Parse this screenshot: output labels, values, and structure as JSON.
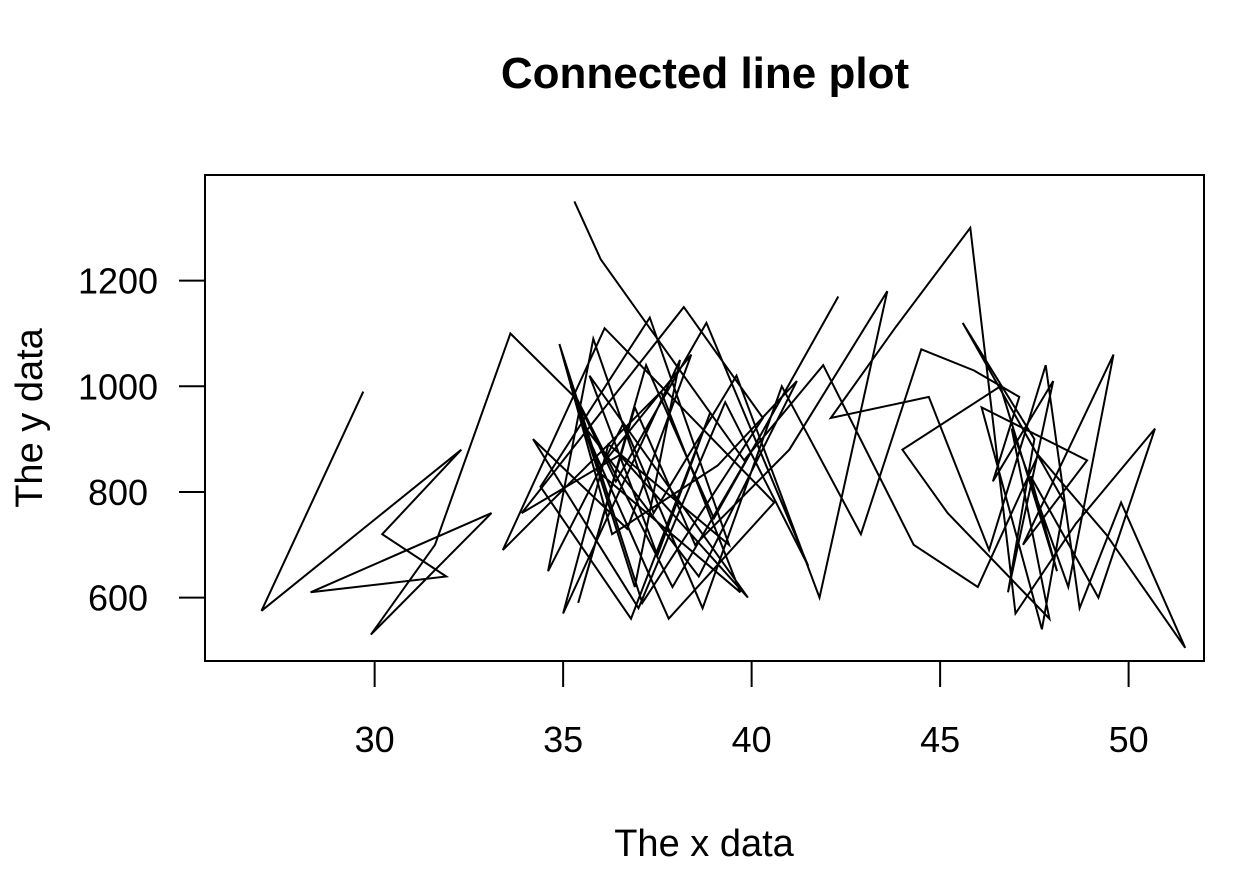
{
  "chart_data": {
    "type": "line",
    "title": "Connected line plot",
    "xlabel": "The x data",
    "ylabel": "The y data",
    "xlim": [
      25.5,
      52
    ],
    "ylim": [
      480,
      1400
    ],
    "x_ticks": [
      30,
      35,
      40,
      45,
      50
    ],
    "y_ticks": [
      600,
      800,
      1000,
      1200
    ],
    "x_tick_labels": [
      "30",
      "35",
      "40",
      "45",
      "50"
    ],
    "y_tick_labels": [
      "600",
      "800",
      "1000",
      "1200"
    ],
    "grid": false,
    "legend": "none",
    "series": [
      {
        "color": "#000000",
        "x": [
          29.7,
          27.0,
          32.3,
          30.2,
          31.9,
          28.3,
          33.1,
          29.9,
          31.6,
          33.6,
          35.3,
          36.9,
          38.1,
          35.0,
          36.2,
          39.4,
          37.3,
          34.4,
          36.8,
          38.9,
          37.5,
          35.7,
          39.9,
          36.5,
          33.9,
          38.2,
          40.3,
          37.1,
          34.9,
          36.3,
          39.1,
          41.2,
          38.6,
          35.5,
          37.8,
          40.6,
          36.1,
          33.4,
          37.6,
          39.7,
          35.9,
          38.4,
          36.7,
          34.2,
          37.0,
          39.3,
          41.5,
          38.8,
          36.4,
          35.2,
          37.9,
          40.1,
          42.3,
          39.0,
          37.2,
          35.4,
          36.9,
          38.5,
          41.0,
          43.6,
          41.8,
          39.6,
          37.4,
          35.8,
          34.6,
          36.6,
          38.7,
          40.8,
          42.9,
          44.5,
          45.9,
          47.1,
          46.4,
          48.0,
          46.8,
          47.5,
          45.6,
          48.3,
          47.7,
          46.1,
          48.9,
          47.2,
          49.6,
          48.4,
          46.9,
          47.9,
          45.2,
          44.0,
          46.6,
          48.1,
          47.4,
          49.2,
          50.7,
          48.6,
          47.0,
          45.8,
          43.8,
          42.1,
          44.7,
          46.3,
          47.8,
          48.7,
          49.8,
          51.5,
          49.4,
          47.6,
          46.0,
          44.3,
          41.9,
          39.8,
          36.0,
          35.3
        ],
        "y": [
          990,
          575,
          880,
          720,
          640,
          610,
          760,
          530,
          700,
          1100,
          980,
          620,
          1050,
          570,
          890,
          700,
          1130,
          810,
          560,
          950,
          680,
          1020,
          600,
          870,
          760,
          1150,
          940,
          590,
          1080,
          720,
          850,
          1010,
          640,
          930,
          560,
          780,
          1110,
          690,
          990,
          610,
          840,
          1060,
          730,
          900,
          580,
          970,
          660,
          1120,
          820,
          1000,
          620,
          890,
          1170,
          750,
          1040,
          590,
          960,
          700,
          880,
          1180,
          600,
          1020,
          760,
          1090,
          650,
          930,
          580,
          1000,
          720,
          1070,
          1030,
          980,
          820,
          1010,
          610,
          900,
          1120,
          780,
          540,
          960,
          860,
          700,
          1060,
          620,
          920,
          560,
          760,
          880,
          1000,
          650,
          830,
          600,
          920,
          740,
          570,
          1300,
          1110,
          940,
          980,
          690,
          1040,
          580,
          780,
          505,
          720,
          870,
          620,
          700,
          1040,
          860,
          1240,
          1350
        ]
      }
    ]
  }
}
